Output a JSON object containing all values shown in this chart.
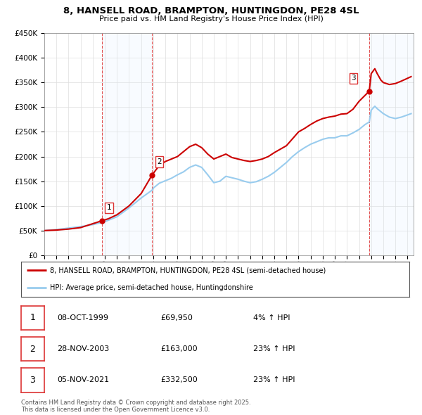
{
  "title": "8, HANSELL ROAD, BRAMPTON, HUNTINGDON, PE28 4SL",
  "subtitle": "Price paid vs. HM Land Registry's House Price Index (HPI)",
  "ylim": [
    0,
    450000
  ],
  "yticks": [
    0,
    50000,
    100000,
    150000,
    200000,
    250000,
    300000,
    350000,
    400000,
    450000
  ],
  "ytick_labels": [
    "£0",
    "£50K",
    "£100K",
    "£150K",
    "£200K",
    "£250K",
    "£300K",
    "£350K",
    "£400K",
    "£450K"
  ],
  "xlim_start": 1995.0,
  "xlim_end": 2025.5,
  "xticks": [
    1995,
    1996,
    1997,
    1998,
    1999,
    2000,
    2001,
    2002,
    2003,
    2004,
    2005,
    2006,
    2007,
    2008,
    2009,
    2010,
    2011,
    2012,
    2013,
    2014,
    2015,
    2016,
    2017,
    2018,
    2019,
    2020,
    2021,
    2022,
    2023,
    2024,
    2025
  ],
  "property_color": "#cc0000",
  "hpi_color": "#99ccee",
  "grid_color": "#dddddd",
  "background_color": "#ffffff",
  "legend_label_property": "8, HANSELL ROAD, BRAMPTON, HUNTINGDON, PE28 4SL (semi-detached house)",
  "legend_label_hpi": "HPI: Average price, semi-detached house, Huntingdonshire",
  "sales": [
    {
      "num": 1,
      "date_dec": 1999.77,
      "price": 69950,
      "pct": "4%",
      "date_str": "08-OCT-1999",
      "price_str": "£69,950"
    },
    {
      "num": 2,
      "date_dec": 2003.91,
      "price": 163000,
      "pct": "23%",
      "date_str": "28-NOV-2003",
      "price_str": "£163,000"
    },
    {
      "num": 3,
      "date_dec": 2021.84,
      "price": 332500,
      "pct": "23%",
      "date_str": "05-NOV-2021",
      "price_str": "£332,500"
    }
  ],
  "sale_vline_color": "#dd3333",
  "sale_shade_color": "#ddeeff",
  "prop_anchors": [
    [
      1995.0,
      50000
    ],
    [
      1996.0,
      51000
    ],
    [
      1997.0,
      53000
    ],
    [
      1998.0,
      56000
    ],
    [
      1999.77,
      69950
    ],
    [
      2000.3,
      74000
    ],
    [
      2001.0,
      82000
    ],
    [
      2002.0,
      100000
    ],
    [
      2003.0,
      125000
    ],
    [
      2003.91,
      163000
    ],
    [
      2004.5,
      182000
    ],
    [
      2005.0,
      190000
    ],
    [
      2006.0,
      200000
    ],
    [
      2006.5,
      210000
    ],
    [
      2007.0,
      220000
    ],
    [
      2007.5,
      225000
    ],
    [
      2008.0,
      218000
    ],
    [
      2008.5,
      205000
    ],
    [
      2009.0,
      195000
    ],
    [
      2009.5,
      200000
    ],
    [
      2010.0,
      205000
    ],
    [
      2010.5,
      198000
    ],
    [
      2011.0,
      195000
    ],
    [
      2011.5,
      192000
    ],
    [
      2012.0,
      190000
    ],
    [
      2012.5,
      192000
    ],
    [
      2013.0,
      195000
    ],
    [
      2013.5,
      200000
    ],
    [
      2014.0,
      208000
    ],
    [
      2014.5,
      215000
    ],
    [
      2015.0,
      222000
    ],
    [
      2015.5,
      236000
    ],
    [
      2016.0,
      250000
    ],
    [
      2016.5,
      257000
    ],
    [
      2017.0,
      265000
    ],
    [
      2017.5,
      272000
    ],
    [
      2018.0,
      277000
    ],
    [
      2018.5,
      280000
    ],
    [
      2019.0,
      282000
    ],
    [
      2019.5,
      286000
    ],
    [
      2020.0,
      287000
    ],
    [
      2020.5,
      296000
    ],
    [
      2021.0,
      312000
    ],
    [
      2021.84,
      332500
    ],
    [
      2022.0,
      368000
    ],
    [
      2022.3,
      378000
    ],
    [
      2022.5,
      368000
    ],
    [
      2022.8,
      355000
    ],
    [
      2023.0,
      350000
    ],
    [
      2023.5,
      346000
    ],
    [
      2024.0,
      348000
    ],
    [
      2024.5,
      353000
    ],
    [
      2025.3,
      362000
    ]
  ],
  "hpi_anchors": [
    [
      1995.0,
      50000
    ],
    [
      1996.0,
      52000
    ],
    [
      1997.0,
      55000
    ],
    [
      1998.0,
      58000
    ],
    [
      1999.0,
      62000
    ],
    [
      2000.0,
      68000
    ],
    [
      2001.0,
      78000
    ],
    [
      2002.0,
      96000
    ],
    [
      2003.0,
      116000
    ],
    [
      2003.91,
      132000
    ],
    [
      2004.0,
      136000
    ],
    [
      2004.5,
      146000
    ],
    [
      2005.0,
      151000
    ],
    [
      2005.5,
      156000
    ],
    [
      2006.0,
      163000
    ],
    [
      2006.5,
      169000
    ],
    [
      2007.0,
      178000
    ],
    [
      2007.5,
      183000
    ],
    [
      2008.0,
      178000
    ],
    [
      2008.5,
      163000
    ],
    [
      2009.0,
      147000
    ],
    [
      2009.5,
      150000
    ],
    [
      2010.0,
      160000
    ],
    [
      2010.5,
      157000
    ],
    [
      2011.0,
      154000
    ],
    [
      2011.5,
      150000
    ],
    [
      2012.0,
      147000
    ],
    [
      2012.5,
      149000
    ],
    [
      2013.0,
      154000
    ],
    [
      2013.5,
      160000
    ],
    [
      2014.0,
      168000
    ],
    [
      2014.5,
      178000
    ],
    [
      2015.0,
      188000
    ],
    [
      2015.5,
      200000
    ],
    [
      2016.0,
      210000
    ],
    [
      2016.5,
      218000
    ],
    [
      2017.0,
      225000
    ],
    [
      2017.5,
      230000
    ],
    [
      2018.0,
      235000
    ],
    [
      2018.5,
      238000
    ],
    [
      2019.0,
      238000
    ],
    [
      2019.5,
      242000
    ],
    [
      2020.0,
      242000
    ],
    [
      2020.5,
      248000
    ],
    [
      2021.0,
      255000
    ],
    [
      2021.5,
      265000
    ],
    [
      2021.84,
      270000
    ],
    [
      2022.0,
      294000
    ],
    [
      2022.3,
      302000
    ],
    [
      2022.5,
      297000
    ],
    [
      2022.8,
      291000
    ],
    [
      2023.0,
      287000
    ],
    [
      2023.5,
      280000
    ],
    [
      2024.0,
      277000
    ],
    [
      2024.5,
      280000
    ],
    [
      2025.3,
      287000
    ]
  ],
  "footnote": "Contains HM Land Registry data © Crown copyright and database right 2025.\nThis data is licensed under the Open Government Licence v3.0."
}
